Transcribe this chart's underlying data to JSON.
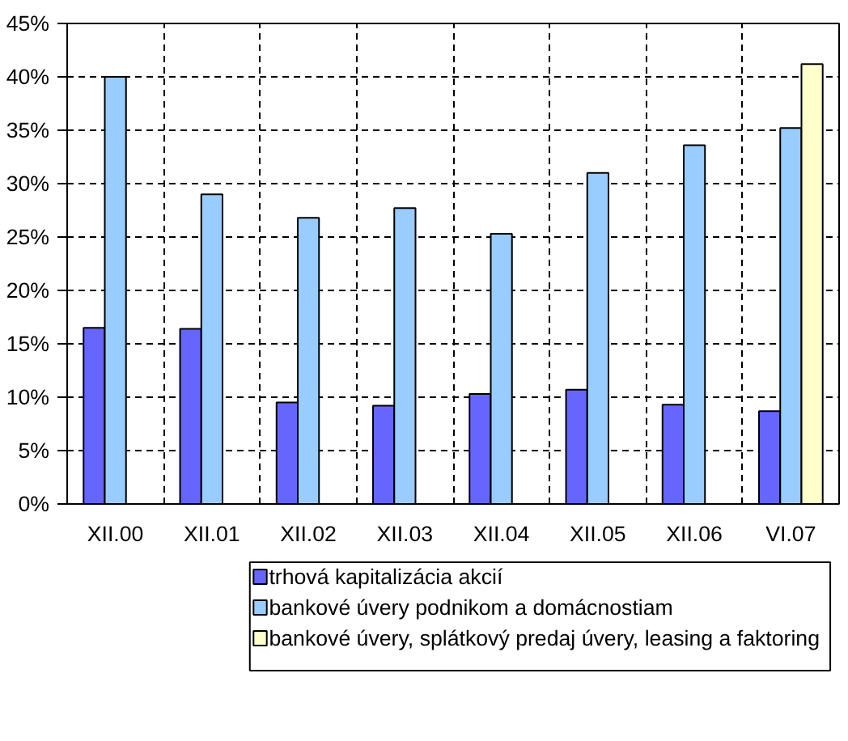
{
  "chart_data": {
    "type": "bar",
    "categories": [
      "XII.00",
      "XII.01",
      "XII.02",
      "XII.03",
      "XII.04",
      "XII.05",
      "XII.06",
      "VI.07"
    ],
    "series": [
      {
        "name": "trhová kapitalizácia akcií",
        "color": "#6666ff",
        "values": [
          16.5,
          16.4,
          9.5,
          9.2,
          10.3,
          10.7,
          9.3,
          8.7
        ]
      },
      {
        "name": "bankové úvery podnikom a domácnostiam",
        "color": "#99ccff",
        "values": [
          40.0,
          29.0,
          26.8,
          27.7,
          25.3,
          31.0,
          33.6,
          35.2
        ]
      },
      {
        "name": "bankové úvery, splátkový predaj úvery, leasing a faktoring",
        "color": "#ffffcc",
        "values": [
          null,
          null,
          null,
          null,
          null,
          null,
          null,
          41.2
        ]
      }
    ],
    "ylim": [
      0,
      45
    ],
    "yticks": [
      {
        "value": 0,
        "label": "0%"
      },
      {
        "value": 5,
        "label": "5%"
      },
      {
        "value": 10,
        "label": "10%"
      },
      {
        "value": 15,
        "label": "15%"
      },
      {
        "value": 20,
        "label": "20%"
      },
      {
        "value": 25,
        "label": "25%"
      },
      {
        "value": 30,
        "label": "30%"
      },
      {
        "value": 35,
        "label": "35%"
      },
      {
        "value": 40,
        "label": "40%"
      },
      {
        "value": 45,
        "label": "45%"
      }
    ],
    "grid": true,
    "legend": "bottom"
  }
}
